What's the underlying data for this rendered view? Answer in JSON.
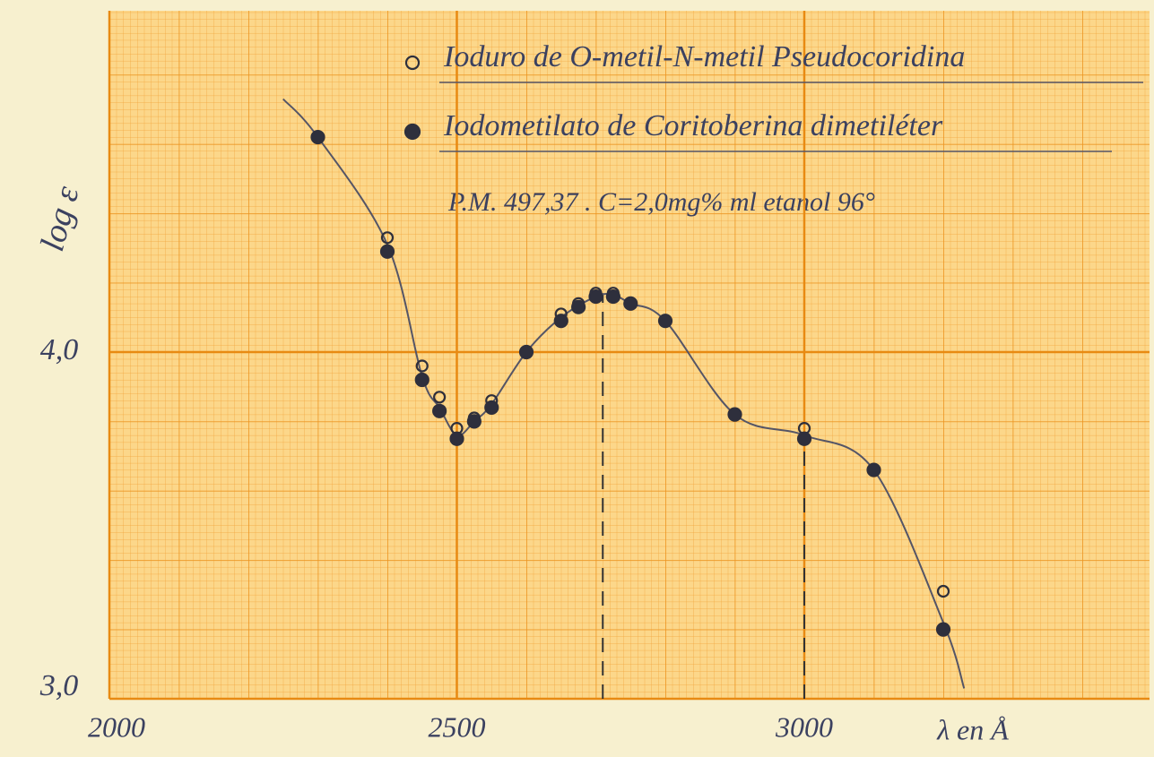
{
  "chart_data": {
    "type": "scatter",
    "xlim": [
      2000,
      3500
    ],
    "ylim": [
      3,
      5
    ],
    "xticks": [
      2000,
      2500,
      3000
    ],
    "yticks": [
      {
        "value": 3,
        "label": "3,0"
      },
      {
        "value": 4,
        "label": "4,0"
      }
    ],
    "x_label": "λ en Å",
    "y_label": "log ε",
    "annotation": "P.M. 497,37 .  C=2,0mg% ml etanol 96°",
    "series": [
      {
        "name": "Ioduro de O-metil-N-metil Pseudocoridina",
        "marker": "open",
        "color": "#2e2f3c",
        "x": [
          2300,
          2400,
          2450,
          2475,
          2500,
          2525,
          2550,
          2600,
          2650,
          2675,
          2700,
          2725,
          2750,
          2800,
          2900,
          3000,
          3100,
          3200
        ],
        "values": [
          4.62,
          4.33,
          3.96,
          3.87,
          3.78,
          3.81,
          3.86,
          4.0,
          4.11,
          4.14,
          4.17,
          4.17,
          4.14,
          4.09,
          3.82,
          3.78,
          3.66,
          3.31
        ]
      },
      {
        "name": "Iodometilato de Coritoberina dimetiléter",
        "marker": "filled",
        "color": "#2e2f3c",
        "x": [
          2300,
          2400,
          2450,
          2475,
          2500,
          2525,
          2550,
          2600,
          2650,
          2675,
          2700,
          2725,
          2750,
          2800,
          2900,
          3000,
          3100,
          3200
        ],
        "values": [
          4.62,
          4.29,
          3.92,
          3.83,
          3.75,
          3.8,
          3.84,
          4.0,
          4.09,
          4.13,
          4.16,
          4.16,
          4.14,
          4.09,
          3.82,
          3.75,
          3.66,
          3.2
        ]
      }
    ],
    "curve": {
      "color": "#555566",
      "x": [
        2250,
        2300,
        2400,
        2450,
        2475,
        2500,
        2525,
        2550,
        2600,
        2650,
        2700,
        2725,
        2750,
        2800,
        2900,
        3000,
        3100,
        3200,
        3230
      ],
      "values": [
        4.73,
        4.62,
        4.31,
        3.93,
        3.84,
        3.76,
        3.8,
        3.85,
        4.0,
        4.1,
        4.16,
        4.165,
        4.14,
        4.09,
        3.82,
        3.76,
        3.66,
        3.22,
        3.03
      ]
    },
    "vlines": [
      {
        "x": 2710,
        "y": 4.17
      },
      {
        "x": 3000,
        "y": 3.76
      }
    ]
  }
}
